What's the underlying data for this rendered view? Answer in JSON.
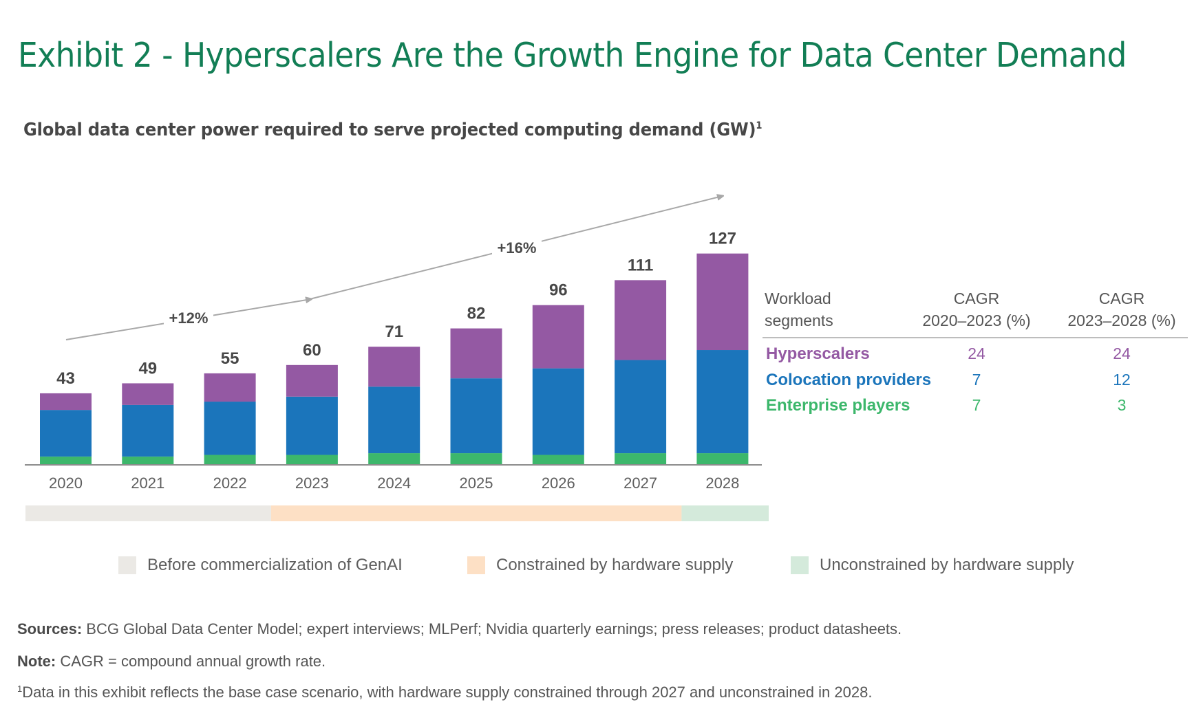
{
  "header": {
    "title": "Exhibit 2 - Hyperscalers Are the Growth Engine for Data Center Demand",
    "subtitle": "Global data center power required to serve projected computing demand (GW)",
    "subtitle_footnote_marker": "1"
  },
  "colors": {
    "title": "#127e55",
    "hyperscalers": "#9459a3",
    "colocation": "#1b75bb",
    "enterprise": "#3cb76b",
    "phase_before": "#ebe9e5",
    "phase_constrained": "#fde0c5",
    "phase_unconstrained": "#d4eadb",
    "arrow": "#a8a8a8"
  },
  "chart_data": {
    "type": "bar",
    "stacked": true,
    "title": "Global data center power required to serve projected computing demand (GW)",
    "xlabel": "",
    "ylabel": "GW",
    "ylim": [
      0,
      130
    ],
    "grid": false,
    "categories": [
      "2020",
      "2021",
      "2022",
      "2023",
      "2024",
      "2025",
      "2026",
      "2027",
      "2028"
    ],
    "series": [
      {
        "name": "Enterprise players",
        "key": "enterprise",
        "values": [
          5,
          5,
          6,
          6,
          7,
          7,
          6,
          7,
          7
        ]
      },
      {
        "name": "Colocation providers",
        "key": "colocation",
        "values": [
          28,
          31,
          32,
          35,
          40,
          45,
          52,
          56,
          62
        ]
      },
      {
        "name": "Hyperscalers",
        "key": "hyperscalers",
        "values": [
          10,
          13,
          17,
          19,
          24,
          30,
          38,
          48,
          58
        ]
      }
    ],
    "totals": [
      43,
      49,
      55,
      60,
      71,
      82,
      96,
      111,
      127
    ],
    "growth_annotations": [
      {
        "label": "+12%",
        "from": "2020",
        "to": "2023"
      },
      {
        "label": "+16%",
        "from": "2023",
        "to": "2028"
      }
    ],
    "phases": [
      {
        "label": "Before commercialization of GenAI",
        "key": "phase_before",
        "from": "2020",
        "to": "2022"
      },
      {
        "label": "Constrained by hardware supply",
        "key": "phase_constrained",
        "from": "2023",
        "to": "2027"
      },
      {
        "label": "Unconstrained by hardware supply",
        "key": "phase_unconstrained",
        "from": "2028",
        "to": "2028"
      }
    ],
    "legend_position": "bottom"
  },
  "cagr_table": {
    "headers": {
      "segment_line1": "Workload",
      "segment_line2": "segments",
      "col1_line1": "CAGR",
      "col1_line2": "2020–2023 (%)",
      "col2_line1": "CAGR",
      "col2_line2": "2023–2028 (%)"
    },
    "rows": [
      {
        "segment": "Hyperscalers",
        "key": "hyperscalers",
        "cagr_2020_2023": "24",
        "cagr_2023_2028": "24"
      },
      {
        "segment": "Colocation providers",
        "key": "colocation",
        "cagr_2020_2023": "7",
        "cagr_2023_2028": "12"
      },
      {
        "segment": "Enterprise players",
        "key": "enterprise",
        "cagr_2020_2023": "7",
        "cagr_2023_2028": "3"
      }
    ]
  },
  "notes": {
    "sources_label": "Sources:",
    "sources_text": " BCG Global Data Center Model; expert interviews; MLPerf; Nvidia quarterly earnings; press releases; product datasheets.",
    "note_label": "Note:",
    "note_text": " CAGR = compound annual growth rate.",
    "footnote_marker": "1",
    "footnote_text": "Data in this exhibit reflects the base case scenario, with hardware supply constrained through 2027 and unconstrained in 2028."
  }
}
